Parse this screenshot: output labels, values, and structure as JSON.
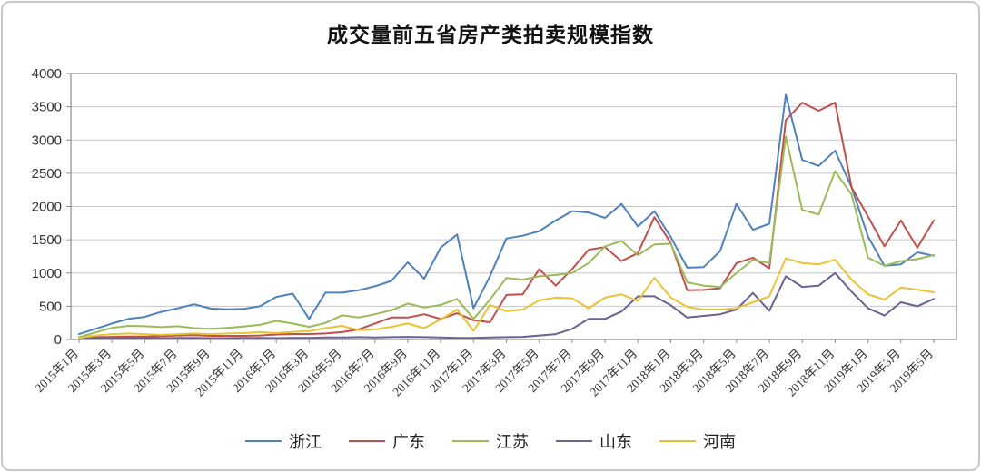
{
  "title": "成交量前五省房产类拍卖规模指数",
  "chart_data": {
    "type": "line",
    "x_unit": "month",
    "x_start": "2015年1月",
    "x_end": "2019年5月",
    "tick_labels": [
      "2015年1月",
      "2015年3月",
      "2015年5月",
      "2015年7月",
      "2015年9月",
      "2015年11月",
      "2016年1月",
      "2016年3月",
      "2016年5月",
      "2016年7月",
      "2016年9月",
      "2016年11月",
      "2017年1月",
      "2017年3月",
      "2017年5月",
      "2017年7月",
      "2017年9月",
      "2017年11月",
      "2018年1月",
      "2018年3月",
      "2018年5月",
      "2018年7月",
      "2018年9月",
      "2018年11月",
      "2019年1月",
      "2019年3月",
      "2019年5月"
    ],
    "ylim": [
      0,
      4000
    ],
    "ytick_step": 500,
    "ytick_labels": [
      "0",
      "500",
      "1000",
      "1500",
      "2000",
      "2500",
      "3000",
      "3500",
      "4000"
    ],
    "grid": true,
    "legend_position": "bottom",
    "series": [
      {
        "key": "zhejiang",
        "name": "浙江",
        "color": "#4F81BD",
        "values": [
          80,
          160,
          240,
          310,
          340,
          415,
          470,
          530,
          465,
          455,
          460,
          500,
          640,
          690,
          310,
          705,
          705,
          740,
          800,
          880,
          1160,
          915,
          1380,
          1580,
          470,
          950,
          1520,
          1560,
          1630,
          1790,
          1930,
          1910,
          1830,
          2040,
          1700,
          1930,
          1540,
          1080,
          1090,
          1330,
          2040,
          1650,
          1740,
          3680,
          2700,
          2610,
          2840,
          2290,
          1550,
          1110,
          1130,
          1310,
          1260
        ]
      },
      {
        "key": "guangdong",
        "name": "广东",
        "color": "#C0504D",
        "values": [
          20,
          35,
          40,
          45,
          45,
          50,
          60,
          65,
          55,
          55,
          55,
          60,
          75,
          82,
          82,
          90,
          110,
          150,
          240,
          330,
          330,
          380,
          310,
          395,
          290,
          260,
          670,
          680,
          1060,
          810,
          1060,
          1350,
          1390,
          1180,
          1300,
          1840,
          1450,
          740,
          745,
          770,
          1150,
          1230,
          1070,
          3300,
          3560,
          3440,
          3560,
          2290,
          1850,
          1400,
          1790,
          1380,
          1790
        ]
      },
      {
        "key": "jiangsu",
        "name": "江苏",
        "color": "#9BBB59",
        "values": [
          35,
          105,
          175,
          205,
          200,
          185,
          200,
          170,
          160,
          175,
          195,
          220,
          280,
          240,
          190,
          250,
          365,
          330,
          380,
          440,
          540,
          480,
          520,
          610,
          310,
          600,
          925,
          900,
          950,
          970,
          1000,
          1150,
          1400,
          1480,
          1270,
          1430,
          1440,
          860,
          810,
          790,
          1000,
          1200,
          1150,
          3050,
          1950,
          1880,
          2530,
          2180,
          1230,
          1110,
          1180,
          1210,
          1270
        ]
      },
      {
        "key": "shandong",
        "name": "山东",
        "color": "#6B6292",
        "values": [
          10,
          15,
          20,
          20,
          25,
          20,
          25,
          25,
          20,
          20,
          25,
          25,
          20,
          25,
          25,
          30,
          30,
          35,
          30,
          35,
          40,
          35,
          30,
          25,
          25,
          30,
          35,
          40,
          60,
          80,
          160,
          310,
          310,
          420,
          650,
          650,
          515,
          330,
          355,
          380,
          450,
          700,
          430,
          950,
          790,
          810,
          1000,
          720,
          470,
          360,
          560,
          500,
          610
        ]
      },
      {
        "key": "henan",
        "name": "河南",
        "color": "#EAC335",
        "values": [
          25,
          60,
          80,
          90,
          80,
          70,
          80,
          90,
          80,
          90,
          95,
          110,
          95,
          115,
          125,
          170,
          205,
          140,
          150,
          190,
          240,
          170,
          300,
          450,
          130,
          520,
          425,
          450,
          590,
          630,
          620,
          470,
          630,
          680,
          580,
          930,
          630,
          490,
          450,
          450,
          470,
          560,
          650,
          1220,
          1150,
          1130,
          1200,
          900,
          680,
          600,
          780,
          750,
          710
        ]
      }
    ]
  },
  "legend": {
    "items": [
      {
        "label": "浙江",
        "color": "#4F81BD"
      },
      {
        "label": "广东",
        "color": "#C0504D"
      },
      {
        "label": "江苏",
        "color": "#9BBB59"
      },
      {
        "label": "山东",
        "color": "#6B6292"
      },
      {
        "label": "河南",
        "color": "#EAC335"
      }
    ]
  },
  "style_colors": {
    "gridline": "#c6c6c6",
    "axis": "#8c8c8c",
    "tick_text": "#333333",
    "frame_border": "#c9c9c9"
  }
}
